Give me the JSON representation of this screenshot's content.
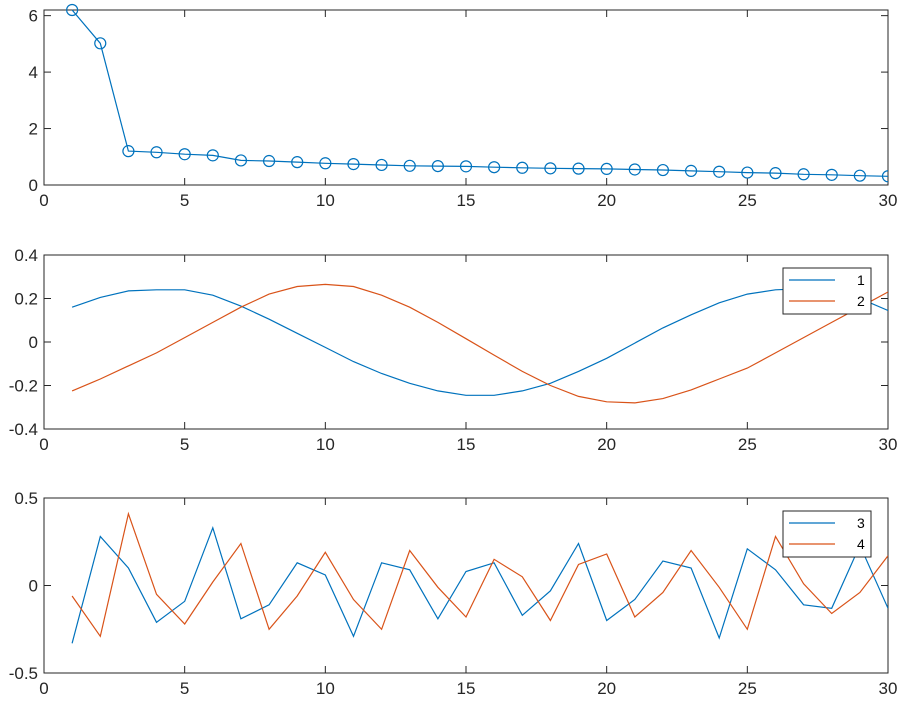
{
  "chart_data": [
    {
      "type": "line",
      "marker": "circle",
      "xlim": [
        0,
        30
      ],
      "ylim": [
        0,
        6.2
      ],
      "xticks": [
        "0",
        "5",
        "10",
        "15",
        "20",
        "25",
        "30"
      ],
      "yticks": [
        "0",
        "2",
        "4",
        "6"
      ],
      "x": [
        1,
        2,
        3,
        4,
        5,
        6,
        7,
        8,
        9,
        10,
        11,
        12,
        13,
        14,
        15,
        16,
        17,
        18,
        19,
        20,
        21,
        22,
        23,
        24,
        25,
        26,
        27,
        28,
        29,
        30
      ],
      "series": [
        {
          "color": "#0072BD",
          "values": [
            6.2,
            5.02,
            1.2,
            1.16,
            1.09,
            1.05,
            0.87,
            0.85,
            0.81,
            0.77,
            0.74,
            0.71,
            0.68,
            0.67,
            0.66,
            0.63,
            0.61,
            0.59,
            0.58,
            0.57,
            0.55,
            0.53,
            0.5,
            0.47,
            0.44,
            0.42,
            0.38,
            0.36,
            0.33,
            0.31
          ]
        }
      ],
      "grid": false,
      "legend": null
    },
    {
      "type": "line",
      "xlim": [
        0,
        30
      ],
      "ylim": [
        -0.4,
        0.4
      ],
      "xticks": [
        "0",
        "5",
        "10",
        "15",
        "20",
        "25",
        "30"
      ],
      "yticks": [
        "0.4",
        "0.2",
        "0",
        "-0.2",
        "-0.4"
      ],
      "x": [
        1,
        2,
        3,
        4,
        5,
        6,
        7,
        8,
        9,
        10,
        11,
        12,
        13,
        14,
        15,
        16,
        17,
        18,
        19,
        20,
        21,
        22,
        23,
        24,
        25,
        26,
        27,
        28,
        29,
        30
      ],
      "series": [
        {
          "name": "1",
          "color": "#0072BD",
          "values": [
            0.16,
            0.205,
            0.235,
            0.24,
            0.24,
            0.215,
            0.165,
            0.105,
            0.04,
            -0.025,
            -0.09,
            -0.145,
            -0.19,
            -0.225,
            -0.245,
            -0.245,
            -0.225,
            -0.19,
            -0.135,
            -0.075,
            -0.005,
            0.065,
            0.125,
            0.18,
            0.22,
            0.24,
            0.245,
            0.235,
            0.2,
            0.145
          ]
        },
        {
          "name": "2",
          "color": "#D95319",
          "values": [
            -0.225,
            -0.17,
            -0.11,
            -0.05,
            0.02,
            0.09,
            0.16,
            0.22,
            0.255,
            0.265,
            0.255,
            0.215,
            0.16,
            0.09,
            0.015,
            -0.06,
            -0.135,
            -0.2,
            -0.25,
            -0.275,
            -0.28,
            -0.26,
            -0.22,
            -0.17,
            -0.12,
            -0.05,
            0.02,
            0.09,
            0.16,
            0.23
          ]
        }
      ],
      "grid": false,
      "legend": "top-right"
    },
    {
      "type": "line",
      "xlim": [
        0,
        30
      ],
      "ylim": [
        -0.5,
        0.5
      ],
      "xticks": [
        "0",
        "5",
        "10",
        "15",
        "20",
        "25",
        "30"
      ],
      "yticks": [
        "0.5",
        "0",
        "-0.5"
      ],
      "x": [
        1,
        2,
        3,
        4,
        5,
        6,
        7,
        8,
        9,
        10,
        11,
        12,
        13,
        14,
        15,
        16,
        17,
        18,
        19,
        20,
        21,
        22,
        23,
        24,
        25,
        26,
        27,
        28,
        29,
        30
      ],
      "series": [
        {
          "name": "3",
          "color": "#0072BD",
          "values": [
            -0.33,
            0.28,
            0.1,
            -0.21,
            -0.09,
            0.33,
            -0.19,
            -0.11,
            0.13,
            0.06,
            -0.29,
            0.13,
            0.09,
            -0.19,
            0.08,
            0.13,
            -0.17,
            -0.03,
            0.24,
            -0.2,
            -0.08,
            0.14,
            0.1,
            -0.3,
            0.21,
            0.09,
            -0.11,
            -0.13,
            0.23,
            -0.13
          ]
        },
        {
          "name": "4",
          "color": "#D95319",
          "values": [
            -0.06,
            -0.29,
            0.41,
            -0.05,
            -0.22,
            0.02,
            0.24,
            -0.25,
            -0.06,
            0.19,
            -0.08,
            -0.25,
            0.2,
            -0.01,
            -0.18,
            0.15,
            0.05,
            -0.2,
            0.12,
            0.18,
            -0.18,
            -0.04,
            0.2,
            -0.01,
            -0.25,
            0.28,
            0.01,
            -0.16,
            -0.04,
            0.17
          ]
        }
      ],
      "grid": false,
      "legend": "top-right"
    }
  ]
}
